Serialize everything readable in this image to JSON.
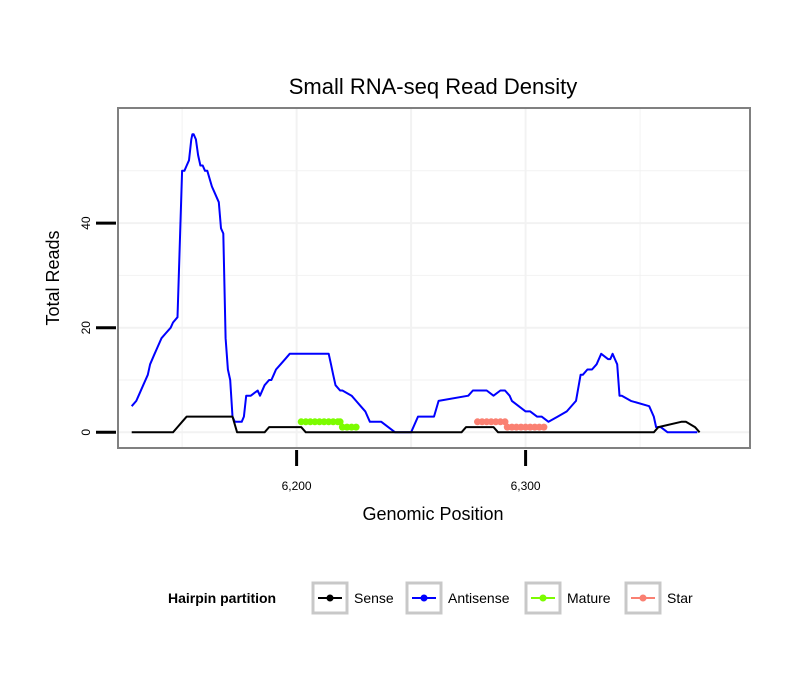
{
  "chart_data": {
    "type": "line",
    "title": "Small RNA-seq Read Density",
    "xlabel": "Genomic Position",
    "ylabel": "Total Reads",
    "xlim": [
      6122,
      6398
    ],
    "ylim": [
      -3,
      62
    ],
    "x_ticks": [
      6200,
      6300
    ],
    "x_tick_labels": [
      "6,200",
      "6,300"
    ],
    "y_ticks": [
      0,
      20,
      40
    ],
    "y_tick_labels": [
      "0",
      "20",
      "40"
    ],
    "grid": true,
    "legend": {
      "title": "Hairpin partition",
      "position": "bottom",
      "entries": [
        {
          "name": "Sense",
          "color": "#000000"
        },
        {
          "name": "Antisense",
          "color": "#0000ff"
        },
        {
          "name": "Mature",
          "color": "#7cfc00"
        },
        {
          "name": "Star",
          "color": "#fa8072"
        }
      ]
    },
    "series": [
      {
        "name": "Antisense",
        "color": "#0000ff",
        "kind": "line",
        "x": [
          6128,
          6130,
          6131,
          6133,
          6135,
          6136,
          6138,
          6139,
          6141,
          6143,
          6145,
          6146,
          6148,
          6150,
          6151,
          6152,
          6153,
          6154,
          6154.5,
          6155,
          6156,
          6157,
          6158,
          6159,
          6160,
          6161,
          6163,
          6164,
          6166,
          6167,
          6168,
          6169,
          6170,
          6171,
          6172,
          6173,
          6174,
          6175,
          6176,
          6177,
          6178,
          6180,
          6183,
          6184,
          6186,
          6188,
          6189,
          6190,
          6191,
          6193,
          6195,
          6197,
          6199,
          6201,
          6203,
          6205,
          6214,
          6215,
          6216,
          6217,
          6219,
          6220,
          6224,
          6226,
          6228,
          6230,
          6232,
          6237,
          6240,
          6243,
          6245,
          6250,
          6253,
          6260,
          6262,
          6275,
          6277,
          6283,
          6286,
          6289,
          6291,
          6293,
          6294,
          6300,
          6302,
          6305,
          6307,
          6310,
          6314,
          6318,
          6322,
          6324,
          6325,
          6327,
          6329,
          6331,
          6333,
          6336,
          6337,
          6338,
          6339,
          6340,
          6341,
          6342,
          6346,
          6354,
          6356,
          6357,
          6359,
          6362,
          6368,
          6375
        ],
        "y": [
          5,
          6,
          7,
          9,
          11,
          13,
          15,
          16,
          18,
          19,
          20,
          21,
          22,
          50,
          50,
          51,
          52,
          56,
          57,
          57,
          56,
          53,
          51,
          51,
          50,
          50,
          47,
          46,
          44,
          39,
          38,
          18,
          12,
          10,
          3,
          2,
          2,
          2,
          2,
          3,
          7,
          7,
          8,
          7,
          9,
          10,
          10,
          11,
          12,
          13,
          14,
          15,
          15,
          15,
          15,
          15,
          15,
          13,
          11,
          9,
          8,
          8,
          7,
          6,
          5,
          4,
          2,
          2,
          1,
          0,
          0,
          0,
          3,
          3,
          6,
          7,
          8,
          8,
          7,
          8,
          8,
          7,
          6,
          4,
          4,
          3,
          3,
          2,
          3,
          4,
          6,
          11,
          11,
          12,
          12,
          13,
          15,
          14,
          14,
          15,
          14,
          13,
          7,
          7,
          6,
          5,
          3,
          1,
          1,
          0,
          0,
          0
        ]
      },
      {
        "name": "Sense",
        "color": "#000000",
        "kind": "line",
        "x": [
          6128,
          6146,
          6148,
          6150,
          6152,
          6172,
          6174,
          6186,
          6188,
          6202,
          6204,
          6250,
          6253,
          6272,
          6274,
          6286,
          6288,
          6300,
          6302,
          6326,
          6328,
          6356,
          6358,
          6368,
          6370,
          6374,
          6376
        ],
        "y": [
          0,
          0,
          1,
          2,
          3,
          3,
          0,
          0,
          1,
          1,
          0,
          0,
          0,
          0,
          1,
          1,
          0,
          0,
          0,
          0,
          0,
          0,
          1,
          2,
          2,
          1,
          0
        ]
      },
      {
        "name": "Mature",
        "color": "#7cfc00",
        "kind": "points",
        "x": [
          6202,
          6204,
          6206,
          6208,
          6210,
          6212,
          6214,
          6216,
          6218,
          6219,
          6220,
          6222,
          6224,
          6226
        ],
        "y": [
          2,
          2,
          2,
          2,
          2,
          2,
          2,
          2,
          2,
          2,
          1,
          1,
          1,
          1
        ]
      },
      {
        "name": "Star",
        "color": "#fa8072",
        "kind": "points",
        "x": [
          6279,
          6281,
          6283,
          6285,
          6287,
          6289,
          6291,
          6292,
          6294,
          6296,
          6298,
          6300,
          6302,
          6304,
          6306,
          6308
        ],
        "y": [
          2,
          2,
          2,
          2,
          2,
          2,
          2,
          1,
          1,
          1,
          1,
          1,
          1,
          1,
          1,
          1
        ]
      }
    ]
  }
}
